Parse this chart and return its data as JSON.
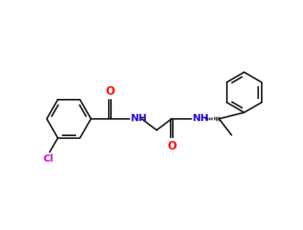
{
  "background_color": "#ffffff",
  "bond_color": "#000000",
  "oxygen_color": "#ff0000",
  "nitrogen_color": "#2200cc",
  "chlorine_color": "#cc00cc",
  "line_width": 1.5,
  "figsize": [
    4.27,
    3.23
  ],
  "dpi": 100,
  "xlim": [
    -1,
    11
  ],
  "ylim": [
    -0.5,
    8
  ]
}
